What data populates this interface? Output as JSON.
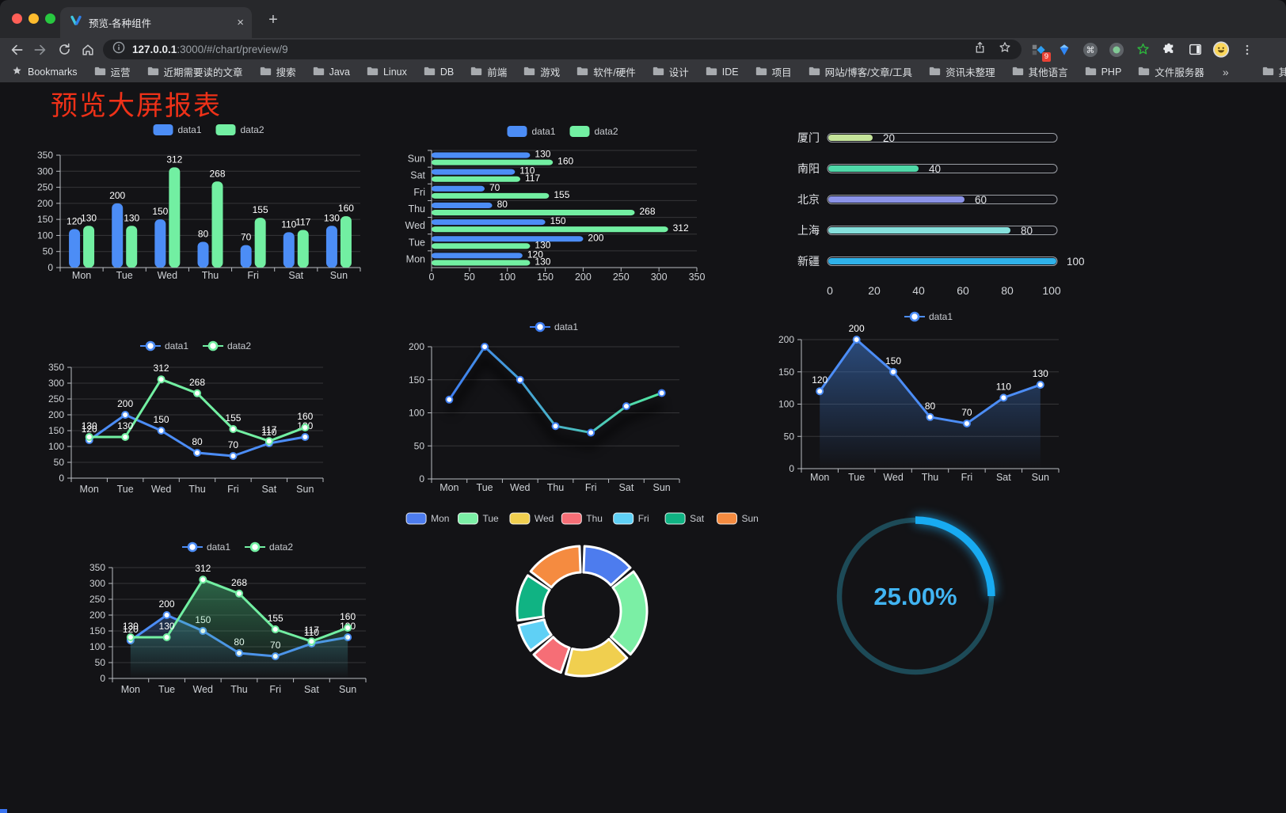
{
  "browser": {
    "tab_title": "预览-各种组件",
    "new_tab_glyph": "+",
    "close_glyph": "×",
    "url_host": "127.0.0.1",
    "url_rest": ":3000/#/chart/preview/9",
    "traffic_lights": [
      "#ff5f57",
      "#febc2e",
      "#28c840"
    ],
    "extension_badge": "9",
    "bookmarks_label": "Bookmarks",
    "bookmarks": [
      "运营",
      "近期需要读的文章",
      "搜索",
      "Java",
      "Linux",
      "DB",
      "前端",
      "游戏",
      "软件/硬件",
      "设计",
      "IDE",
      "项目",
      "网站/博客/文章/工具",
      "资讯未整理",
      "其他语言",
      "PHP",
      "文件服务器"
    ],
    "overflow_chevron": "»",
    "other_bookmarks": "其他书签"
  },
  "page": {
    "title": "预览大屏报表",
    "title_color": "#ee3118"
  },
  "chart_data": [
    {
      "id": "bar-grouped",
      "type": "bar",
      "categories": [
        "Mon",
        "Tue",
        "Wed",
        "Thu",
        "Fri",
        "Sat",
        "Sun"
      ],
      "series": [
        {
          "name": "data1",
          "color": "#4c8df6",
          "values": [
            120,
            200,
            150,
            80,
            70,
            110,
            130
          ]
        },
        {
          "name": "data2",
          "color": "#72efa2",
          "values": [
            130,
            130,
            312,
            268,
            155,
            117,
            160
          ]
        }
      ],
      "ylim": [
        0,
        350
      ],
      "ytick_step": 50,
      "legend_position": "top",
      "value_labels": true
    },
    {
      "id": "bar-horizontal",
      "type": "bar-horizontal",
      "categories": [
        "Mon",
        "Tue",
        "Wed",
        "Thu",
        "Fri",
        "Sat",
        "Sun"
      ],
      "display_order_top_to_bottom": [
        "Sun",
        "Sat",
        "Fri",
        "Thu",
        "Wed",
        "Tue",
        "Mon"
      ],
      "series": [
        {
          "name": "data1",
          "color": "#4c8df6",
          "values": [
            120,
            200,
            150,
            80,
            70,
            110,
            130
          ]
        },
        {
          "name": "data2",
          "color": "#72efa2",
          "values": [
            130,
            130,
            312,
            268,
            155,
            117,
            160
          ]
        }
      ],
      "xlim": [
        0,
        350
      ],
      "xtick_step": 50,
      "legend_position": "top",
      "value_labels": true
    },
    {
      "id": "city-progress",
      "type": "progress-bars",
      "rows": [
        {
          "label": "厦门",
          "value": 20,
          "color": "#c5e49a"
        },
        {
          "label": "南阳",
          "value": 40,
          "color": "#4fd8a8"
        },
        {
          "label": "北京",
          "value": 60,
          "color": "#8b93e8"
        },
        {
          "label": "上海",
          "value": 80,
          "color": "#86e0dc"
        },
        {
          "label": "新疆",
          "value": 100,
          "color": "#2fb2ea"
        }
      ],
      "xlim": [
        0,
        100
      ],
      "xticks": [
        0,
        20,
        40,
        60,
        80,
        100
      ]
    },
    {
      "id": "line-two",
      "type": "line",
      "categories": [
        "Mon",
        "Tue",
        "Wed",
        "Thu",
        "Fri",
        "Sat",
        "Sun"
      ],
      "series": [
        {
          "name": "data1",
          "color": "#4c8df6",
          "values": [
            120,
            200,
            150,
            80,
            70,
            110,
            130
          ]
        },
        {
          "name": "data2",
          "color": "#72efa2",
          "values": [
            130,
            130,
            312,
            268,
            155,
            117,
            160
          ]
        }
      ],
      "ylim": [
        0,
        350
      ],
      "ytick_step": 50,
      "legend_position": "top",
      "value_labels": true
    },
    {
      "id": "line-gradient",
      "type": "line",
      "categories": [
        "Mon",
        "Tue",
        "Wed",
        "Thu",
        "Fri",
        "Sat",
        "Sun"
      ],
      "series": [
        {
          "name": "data1",
          "color": "#3f7ef2",
          "gradient_to": "#52e7a0",
          "values": [
            120,
            200,
            150,
            80,
            70,
            110,
            130
          ]
        }
      ],
      "ylim": [
        0,
        200
      ],
      "ytick_step": 50,
      "legend_position": "top",
      "value_labels": false,
      "shadow": true
    },
    {
      "id": "area-one",
      "type": "area",
      "categories": [
        "Mon",
        "Tue",
        "Wed",
        "Thu",
        "Fri",
        "Sat",
        "Sun"
      ],
      "series": [
        {
          "name": "data1",
          "color": "#4c8df6",
          "area_from": "rgba(62,120,205,0.55)",
          "area_to": "rgba(62,120,205,0)",
          "values": [
            120,
            200,
            150,
            80,
            70,
            110,
            130
          ]
        }
      ],
      "ylim": [
        0,
        200
      ],
      "ytick_step": 50,
      "legend_position": "top",
      "value_labels": true
    },
    {
      "id": "area-two",
      "type": "area",
      "categories": [
        "Mon",
        "Tue",
        "Wed",
        "Thu",
        "Fri",
        "Sat",
        "Sun"
      ],
      "series": [
        {
          "name": "data1",
          "color": "#4c8df6",
          "area_from": "rgba(58,105,175,0.40)",
          "area_to": "rgba(58,105,175,0)",
          "values": [
            120,
            200,
            150,
            80,
            70,
            110,
            130
          ]
        },
        {
          "name": "data2",
          "color": "#72efa2",
          "area_from": "rgba(74,200,130,0.45)",
          "area_to": "rgba(74,200,130,0)",
          "values": [
            130,
            130,
            312,
            268,
            155,
            117,
            160
          ]
        }
      ],
      "ylim": [
        0,
        350
      ],
      "ytick_step": 50,
      "legend_position": "top",
      "value_labels": true
    },
    {
      "id": "week-donut",
      "type": "pie",
      "legend_position": "top",
      "items": [
        {
          "label": "Mon",
          "value": 120,
          "color": "#4d7cee"
        },
        {
          "label": "Tue",
          "value": 200,
          "color": "#7befa5"
        },
        {
          "label": "Wed",
          "value": 150,
          "color": "#f0cf4f"
        },
        {
          "label": "Thu",
          "value": 80,
          "color": "#f66e76"
        },
        {
          "label": "Fri",
          "value": 70,
          "color": "#5fd0f5"
        },
        {
          "label": "Sat",
          "value": 110,
          "color": "#10b383"
        },
        {
          "label": "Sun",
          "value": 130,
          "color": "#f58b40"
        }
      ]
    },
    {
      "id": "gauge",
      "type": "gauge",
      "value": 25,
      "max": 100,
      "text": "25.00%",
      "color": "#18abf2",
      "track_color": "#1d4a57",
      "text_color": "#41b4f2"
    }
  ]
}
